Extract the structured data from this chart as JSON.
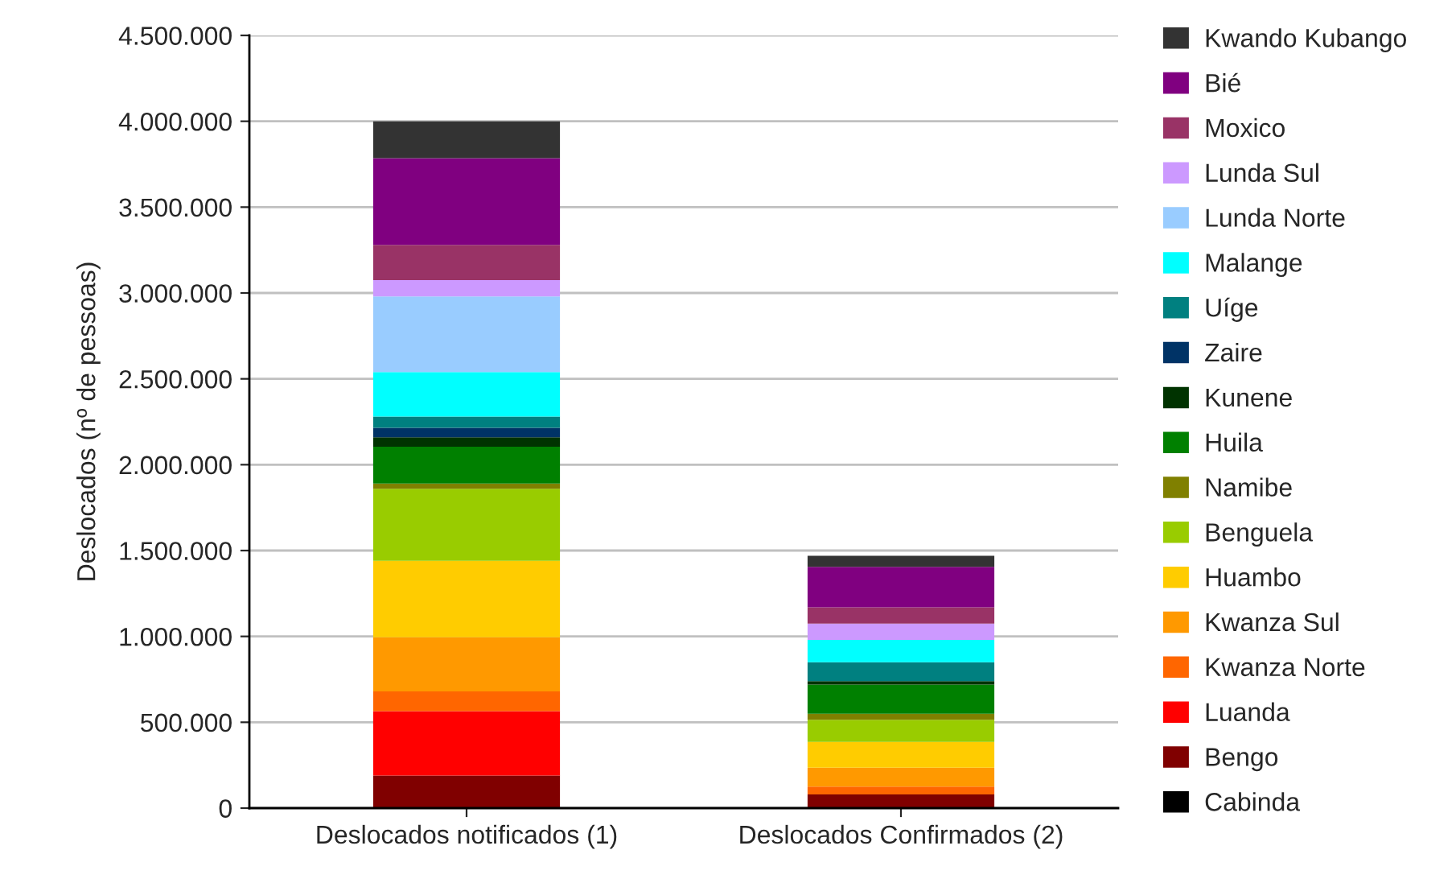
{
  "chart_data": {
    "type": "bar",
    "stacked": true,
    "ylabel": "Deslocados (nº de pessoas)",
    "categories": [
      "Deslocados notificados (1)",
      "Deslocados Confirmados (2)"
    ],
    "ylim": [
      0,
      4500000
    ],
    "yticks": [
      {
        "value": 0,
        "label": "0"
      },
      {
        "value": 500000,
        "label": "500.000"
      },
      {
        "value": 1000000,
        "label": "1.000.000"
      },
      {
        "value": 1500000,
        "label": "1.500.000"
      },
      {
        "value": 2000000,
        "label": "2.000.000"
      },
      {
        "value": 2500000,
        "label": "2.500.000"
      },
      {
        "value": 3000000,
        "label": "3.000.000"
      },
      {
        "value": 3500000,
        "label": "3.500.000"
      },
      {
        "value": 4000000,
        "label": "4.000.000"
      },
      {
        "value": 4500000,
        "label": "4.500.000"
      }
    ],
    "grid": "y",
    "legend": "right",
    "series": [
      {
        "name": "Cabinda",
        "color": "#000000",
        "values": [
          null,
          null
        ]
      },
      {
        "name": "Bengo",
        "color": "#800000",
        "values": [
          190000,
          80000
        ]
      },
      {
        "name": "Luanda",
        "color": "#ff0000",
        "values": [
          375000,
          0
        ]
      },
      {
        "name": "Kwanza Norte",
        "color": "#ff6600",
        "values": [
          115000,
          45000
        ]
      },
      {
        "name": "Kwanza Sul",
        "color": "#ff9900",
        "values": [
          315000,
          110000
        ]
      },
      {
        "name": "Huambo",
        "color": "#ffcc00",
        "values": [
          445000,
          150000
        ]
      },
      {
        "name": "Benguela",
        "color": "#99cc00",
        "values": [
          420000,
          130000
        ]
      },
      {
        "name": "Namibe",
        "color": "#808000",
        "values": [
          30000,
          35000
        ]
      },
      {
        "name": "Huila",
        "color": "#008000",
        "values": [
          215000,
          170000
        ]
      },
      {
        "name": "Kunene",
        "color": "#003300",
        "values": [
          55000,
          20000
        ]
      },
      {
        "name": "Zaire",
        "color": "#003366",
        "values": [
          55000,
          0
        ]
      },
      {
        "name": "Uíge",
        "color": "#008080",
        "values": [
          65000,
          110000
        ]
      },
      {
        "name": "Malange",
        "color": "#00ffff",
        "values": [
          260000,
          130000
        ]
      },
      {
        "name": "Lunda Norte",
        "color": "#99ccff",
        "values": [
          440000,
          0
        ]
      },
      {
        "name": "Lunda Sul",
        "color": "#cc99ff",
        "values": [
          95000,
          95000
        ]
      },
      {
        "name": "Moxico",
        "color": "#993366",
        "values": [
          205000,
          95000
        ]
      },
      {
        "name": "Bié",
        "color": "#800080",
        "values": [
          505000,
          235000
        ]
      },
      {
        "name": "Kwando Kubango",
        "color": "#333333",
        "values": [
          215000,
          65000
        ]
      }
    ]
  }
}
